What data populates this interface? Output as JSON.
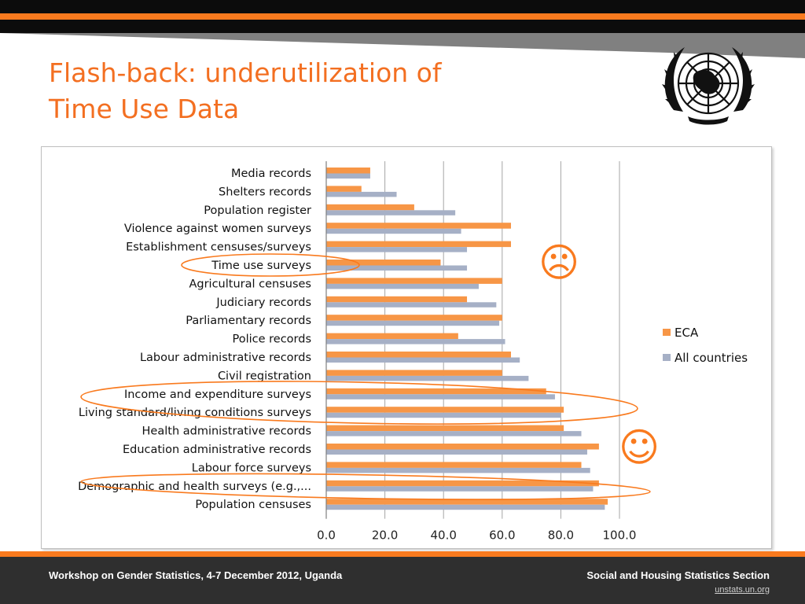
{
  "slide": {
    "title_line1": "Flash-back: underutilization of",
    "title_line2": "Time Use Data",
    "footer_left": "Workshop on Gender Statistics, 4-7 December 2012, Uganda",
    "footer_right": "Social and Housing Statistics Section",
    "footer_link": "unstats.un.org",
    "sad_face": "☹",
    "happy_face": "☺"
  },
  "colors": {
    "accent_orange": "#f97a1e",
    "title_orange": "#f36f21",
    "header_black": "#0c0c0c",
    "header_gray": "#808080",
    "footer_bg": "#2f2f2f",
    "eca_bar": "#f79646",
    "all_bar": "#a6b0c6",
    "grid": "#a6a6a6"
  },
  "chart_data": {
    "type": "bar",
    "orientation": "horizontal",
    "categories": [
      "Media records",
      "Shelters records",
      "Population register",
      "Violence against women surveys",
      "Establishment censuses/surveys",
      "Time use surveys",
      "Agricultural censuses",
      "Judiciary records",
      "Parliamentary records",
      "Police records",
      "Labour administrative records",
      "Civil registration",
      "Income and expenditure surveys",
      "Living standard/living conditions surveys",
      "Health administrative records",
      "Education administrative records",
      "Labour force surveys",
      "Demographic and health surveys (e.g.,...",
      "Population censuses"
    ],
    "series": [
      {
        "name": "ECA",
        "color": "#f79646",
        "values": [
          15,
          12,
          30,
          63,
          63,
          39,
          60,
          48,
          60,
          45,
          63,
          60,
          75,
          81,
          81,
          93,
          87,
          93,
          96
        ]
      },
      {
        "name": "All countries",
        "color": "#a6b0c6",
        "values": [
          15,
          24,
          44,
          46,
          48,
          48,
          52,
          58,
          59,
          61,
          66,
          69,
          78,
          80,
          87,
          89,
          90,
          91,
          95
        ]
      }
    ],
    "xlim": [
      0,
      100
    ],
    "xticks": [
      "0.0",
      "20.0",
      "40.0",
      "60.0",
      "80.0",
      "100.0"
    ],
    "grid": true,
    "legend_position": "right",
    "highlighted_categories": [
      "Time use surveys",
      "Income and expenditure surveys",
      "Living standard/living conditions surveys",
      "Demographic and health surveys (e.g.,..."
    ]
  }
}
